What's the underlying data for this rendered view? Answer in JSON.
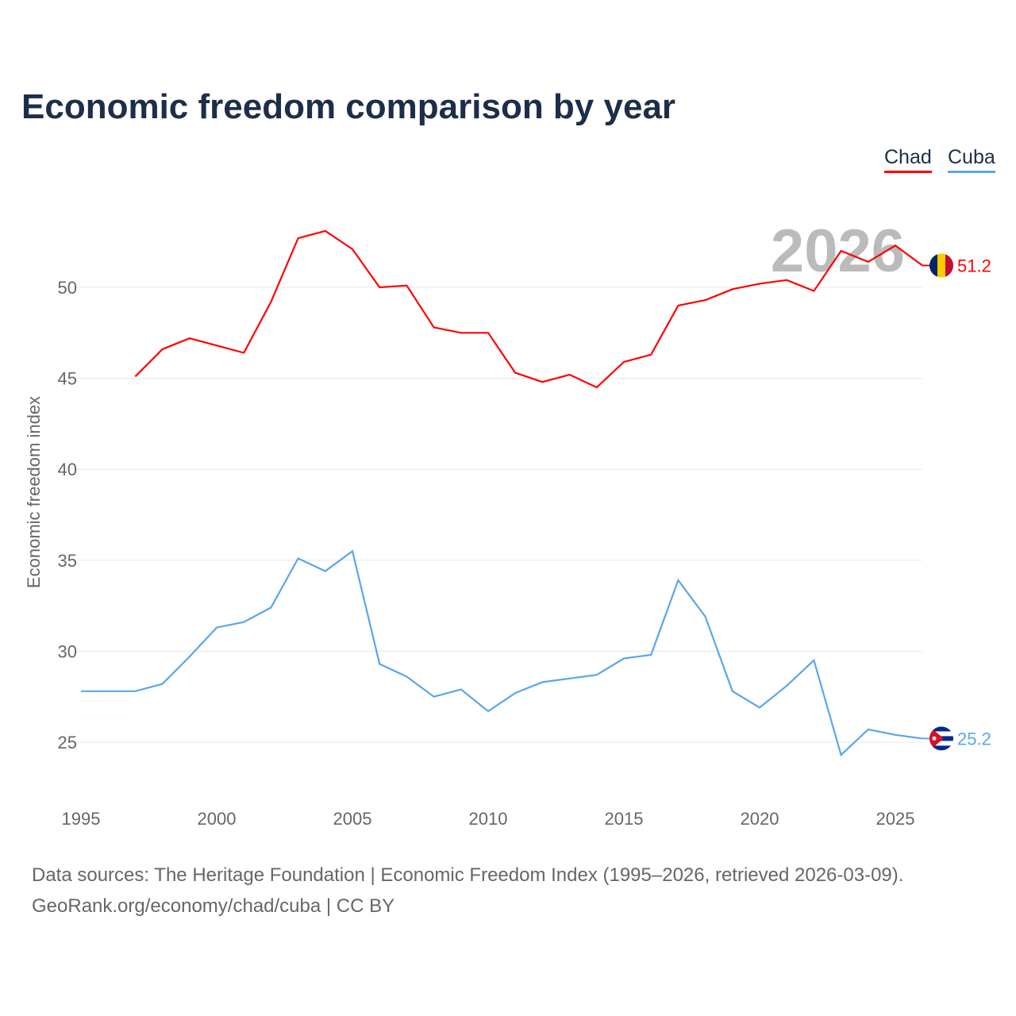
{
  "chart_data": {
    "type": "line",
    "title": "Economic freedom comparison by year",
    "ylabel": "Economic freedom index",
    "xlim": [
      1995,
      2026
    ],
    "ylim": [
      22.5,
      54
    ],
    "yticks": [
      25,
      30,
      35,
      40,
      45,
      50
    ],
    "xticks": [
      1995,
      2000,
      2005,
      2010,
      2015,
      2020,
      2025
    ],
    "grid": true,
    "legend_position": "top-right",
    "year_label": "2026",
    "series": [
      {
        "name": "Chad",
        "color": "#ff0000",
        "end_label": "51.2",
        "x": [
          1997,
          1998,
          1999,
          2000,
          2001,
          2002,
          2003,
          2004,
          2005,
          2006,
          2007,
          2008,
          2009,
          2010,
          2011,
          2012,
          2013,
          2014,
          2015,
          2016,
          2017,
          2018,
          2019,
          2020,
          2021,
          2022,
          2023,
          2024,
          2025,
          2026
        ],
        "values": [
          45.1,
          46.6,
          47.2,
          46.8,
          46.4,
          49.2,
          52.7,
          53.1,
          52.1,
          50.0,
          50.1,
          47.8,
          47.5,
          47.5,
          45.3,
          44.8,
          45.2,
          44.5,
          45.9,
          46.3,
          49.0,
          49.3,
          49.9,
          50.2,
          50.4,
          49.8,
          52.0,
          51.4,
          52.3,
          51.2
        ]
      },
      {
        "name": "Cuba",
        "color": "#5aa5ec",
        "end_label": "25.2",
        "x": [
          1995,
          1996,
          1997,
          1998,
          1999,
          2000,
          2001,
          2002,
          2003,
          2004,
          2005,
          2006,
          2007,
          2008,
          2009,
          2010,
          2011,
          2012,
          2013,
          2014,
          2015,
          2016,
          2017,
          2018,
          2019,
          2020,
          2021,
          2022,
          2023,
          2024,
          2025,
          2026
        ],
        "values": [
          27.8,
          27.8,
          27.8,
          28.2,
          29.7,
          31.3,
          31.6,
          32.4,
          35.1,
          34.4,
          35.5,
          29.3,
          28.6,
          27.5,
          27.9,
          26.7,
          27.7,
          28.3,
          28.5,
          28.7,
          29.6,
          29.8,
          33.9,
          31.9,
          27.8,
          26.9,
          28.1,
          29.5,
          24.3,
          25.7,
          25.4,
          25.2
        ]
      }
    ]
  },
  "footer": {
    "line1": "Data sources: The Heritage Foundation | Economic Freedom Index (1995–2026, retrieved 2026-03-09).",
    "line2": "GeoRank.org/economy/chad/cuba | CC BY"
  }
}
